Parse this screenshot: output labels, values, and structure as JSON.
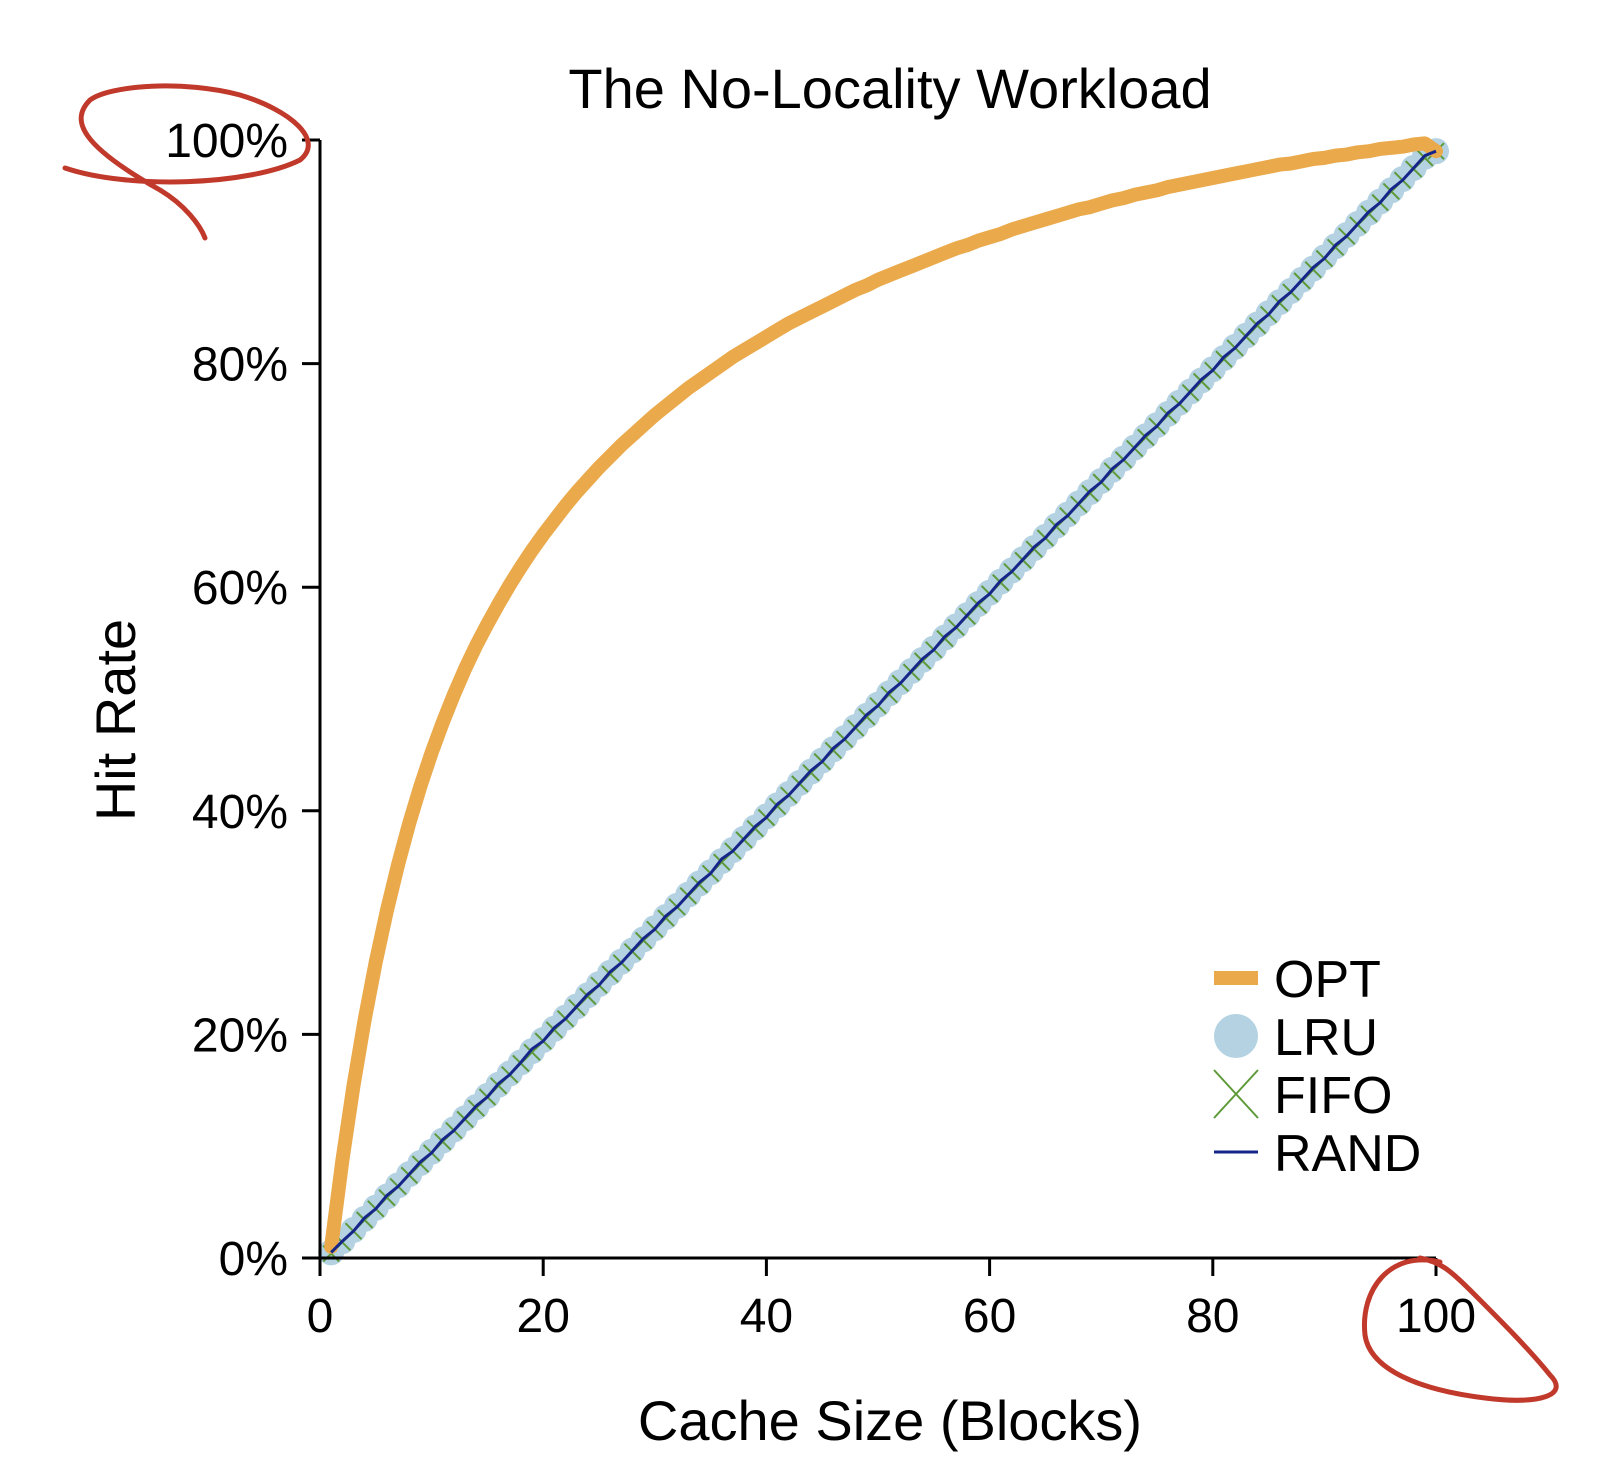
{
  "chart_data": {
    "type": "line",
    "title": "The No-Locality Workload",
    "xlabel": "Cache Size (Blocks)",
    "ylabel": "Hit Rate",
    "xlim": [
      0,
      100
    ],
    "ylim": [
      0,
      100
    ],
    "xticks": [
      0,
      20,
      40,
      60,
      80,
      100
    ],
    "xtick_labels": [
      "0",
      "20",
      "40",
      "60",
      "80",
      "100"
    ],
    "yticks": [
      0,
      20,
      40,
      60,
      80,
      100
    ],
    "ytick_labels": [
      "0%",
      "20%",
      "40%",
      "60%",
      "80%",
      "100%"
    ],
    "grid": false,
    "legend_position": "bottom-right",
    "x": [
      1,
      2,
      3,
      4,
      5,
      6,
      7,
      8,
      9,
      10,
      11,
      12,
      13,
      14,
      15,
      16,
      17,
      18,
      19,
      20,
      21,
      22,
      23,
      24,
      25,
      26,
      27,
      28,
      29,
      30,
      31,
      32,
      33,
      34,
      35,
      36,
      37,
      38,
      39,
      40,
      41,
      42,
      43,
      44,
      45,
      46,
      47,
      48,
      49,
      50,
      51,
      52,
      53,
      54,
      55,
      56,
      57,
      58,
      59,
      60,
      61,
      62,
      63,
      64,
      65,
      66,
      67,
      68,
      69,
      70,
      71,
      72,
      73,
      74,
      75,
      76,
      77,
      78,
      79,
      80,
      81,
      82,
      83,
      84,
      85,
      86,
      87,
      88,
      89,
      90,
      91,
      92,
      93,
      94,
      95,
      96,
      97,
      98,
      99,
      100
    ],
    "series": [
      {
        "name": "OPT",
        "color": "#eaa94a",
        "marker": "thick-line",
        "values": [
          1.0,
          8.7,
          15.4,
          21.3,
          26.5,
          31.1,
          35.2,
          38.9,
          42.2,
          45.2,
          47.9,
          50.4,
          52.7,
          54.8,
          56.7,
          58.5,
          60.2,
          61.8,
          63.3,
          64.7,
          66.0,
          67.3,
          68.5,
          69.6,
          70.7,
          71.7,
          72.7,
          73.6,
          74.5,
          75.4,
          76.2,
          77.0,
          77.8,
          78.5,
          79.2,
          79.9,
          80.6,
          81.2,
          81.8,
          82.4,
          83.0,
          83.6,
          84.1,
          84.6,
          85.1,
          85.6,
          86.1,
          86.6,
          87.0,
          87.5,
          87.9,
          88.3,
          88.7,
          89.1,
          89.5,
          89.9,
          90.3,
          90.6,
          91.0,
          91.3,
          91.6,
          92.0,
          92.3,
          92.6,
          92.9,
          93.2,
          93.5,
          93.8,
          94.0,
          94.3,
          94.6,
          94.8,
          95.1,
          95.3,
          95.5,
          95.8,
          96.0,
          96.2,
          96.4,
          96.6,
          96.8,
          97.0,
          97.2,
          97.4,
          97.6,
          97.8,
          97.9,
          98.1,
          98.3,
          98.4,
          98.6,
          98.7,
          98.9,
          99.0,
          99.2,
          99.3,
          99.4,
          99.6,
          99.7,
          99.0
        ]
      },
      {
        "name": "LRU",
        "color": "#b4d2e2",
        "marker": "circle",
        "values": [
          0.5,
          1.5,
          2.5,
          3.5,
          4.5,
          5.5,
          6.5,
          7.5,
          8.5,
          9.5,
          10.5,
          11.5,
          12.5,
          13.5,
          14.5,
          15.5,
          16.5,
          17.5,
          18.5,
          19.5,
          20.5,
          21.5,
          22.5,
          23.5,
          24.5,
          25.5,
          26.5,
          27.5,
          28.5,
          29.5,
          30.5,
          31.5,
          32.5,
          33.5,
          34.5,
          35.5,
          36.5,
          37.5,
          38.5,
          39.5,
          40.5,
          41.5,
          42.5,
          43.5,
          44.5,
          45.5,
          46.5,
          47.5,
          48.5,
          49.5,
          50.5,
          51.5,
          52.5,
          53.5,
          54.5,
          55.5,
          56.5,
          57.5,
          58.5,
          59.5,
          60.5,
          61.5,
          62.5,
          63.5,
          64.5,
          65.5,
          66.5,
          67.5,
          68.5,
          69.5,
          70.5,
          71.5,
          72.5,
          73.5,
          74.5,
          75.5,
          76.5,
          77.5,
          78.5,
          79.5,
          80.5,
          81.5,
          82.5,
          83.5,
          84.5,
          85.5,
          86.5,
          87.5,
          88.5,
          89.5,
          90.5,
          91.5,
          92.5,
          93.5,
          94.5,
          95.5,
          96.5,
          97.5,
          98.5,
          99.0
        ]
      },
      {
        "name": "FIFO",
        "color": "#5e9a3a",
        "marker": "x",
        "values": [
          0.4,
          1.4,
          2.4,
          3.4,
          4.4,
          5.4,
          6.4,
          7.4,
          8.4,
          9.4,
          10.4,
          11.4,
          12.4,
          13.4,
          14.4,
          15.4,
          16.4,
          17.4,
          18.4,
          19.4,
          20.4,
          21.4,
          22.4,
          23.4,
          24.4,
          25.4,
          26.4,
          27.4,
          28.4,
          29.4,
          30.4,
          31.4,
          32.4,
          33.4,
          34.4,
          35.4,
          36.4,
          37.4,
          38.4,
          39.4,
          40.4,
          41.4,
          42.4,
          43.4,
          44.4,
          45.4,
          46.4,
          47.4,
          48.4,
          49.4,
          50.4,
          51.4,
          52.4,
          53.4,
          54.4,
          55.4,
          56.4,
          57.4,
          58.4,
          59.4,
          60.4,
          61.4,
          62.4,
          63.4,
          64.4,
          65.4,
          66.4,
          67.4,
          68.4,
          69.4,
          70.4,
          71.4,
          72.4,
          73.4,
          74.4,
          75.4,
          76.4,
          77.4,
          78.4,
          79.4,
          80.4,
          81.4,
          82.4,
          83.4,
          84.4,
          85.4,
          86.4,
          87.4,
          88.4,
          89.4,
          90.4,
          91.4,
          92.4,
          93.4,
          94.4,
          95.4,
          96.4,
          97.4,
          98.4,
          99.0
        ]
      },
      {
        "name": "RAND",
        "color": "#16258a",
        "marker": "line",
        "values": [
          0.5,
          1.5,
          2.4,
          3.6,
          4.4,
          5.6,
          6.4,
          7.5,
          8.6,
          9.4,
          10.6,
          11.4,
          12.5,
          13.6,
          14.4,
          15.6,
          16.4,
          17.5,
          18.7,
          19.4,
          20.6,
          21.4,
          22.5,
          23.6,
          24.4,
          25.6,
          26.4,
          27.5,
          28.6,
          29.4,
          30.6,
          31.4,
          32.5,
          33.6,
          34.4,
          35.7,
          36.4,
          37.5,
          38.6,
          39.4,
          40.6,
          41.4,
          42.5,
          43.6,
          44.4,
          45.6,
          46.4,
          47.5,
          48.6,
          49.4,
          50.6,
          51.4,
          52.5,
          53.6,
          54.4,
          55.6,
          56.4,
          57.5,
          58.6,
          59.4,
          60.6,
          61.4,
          62.5,
          63.6,
          64.4,
          65.6,
          66.4,
          67.5,
          68.6,
          69.4,
          70.6,
          71.4,
          72.5,
          73.6,
          74.4,
          75.6,
          76.4,
          77.5,
          78.6,
          79.4,
          80.6,
          81.4,
          82.5,
          83.6,
          84.4,
          85.6,
          86.4,
          87.5,
          88.6,
          89.4,
          90.6,
          91.4,
          92.5,
          93.6,
          94.4,
          95.6,
          96.4,
          97.5,
          98.6,
          99.0
        ]
      }
    ]
  },
  "annotations": {
    "ink_color": "#c0392b"
  }
}
